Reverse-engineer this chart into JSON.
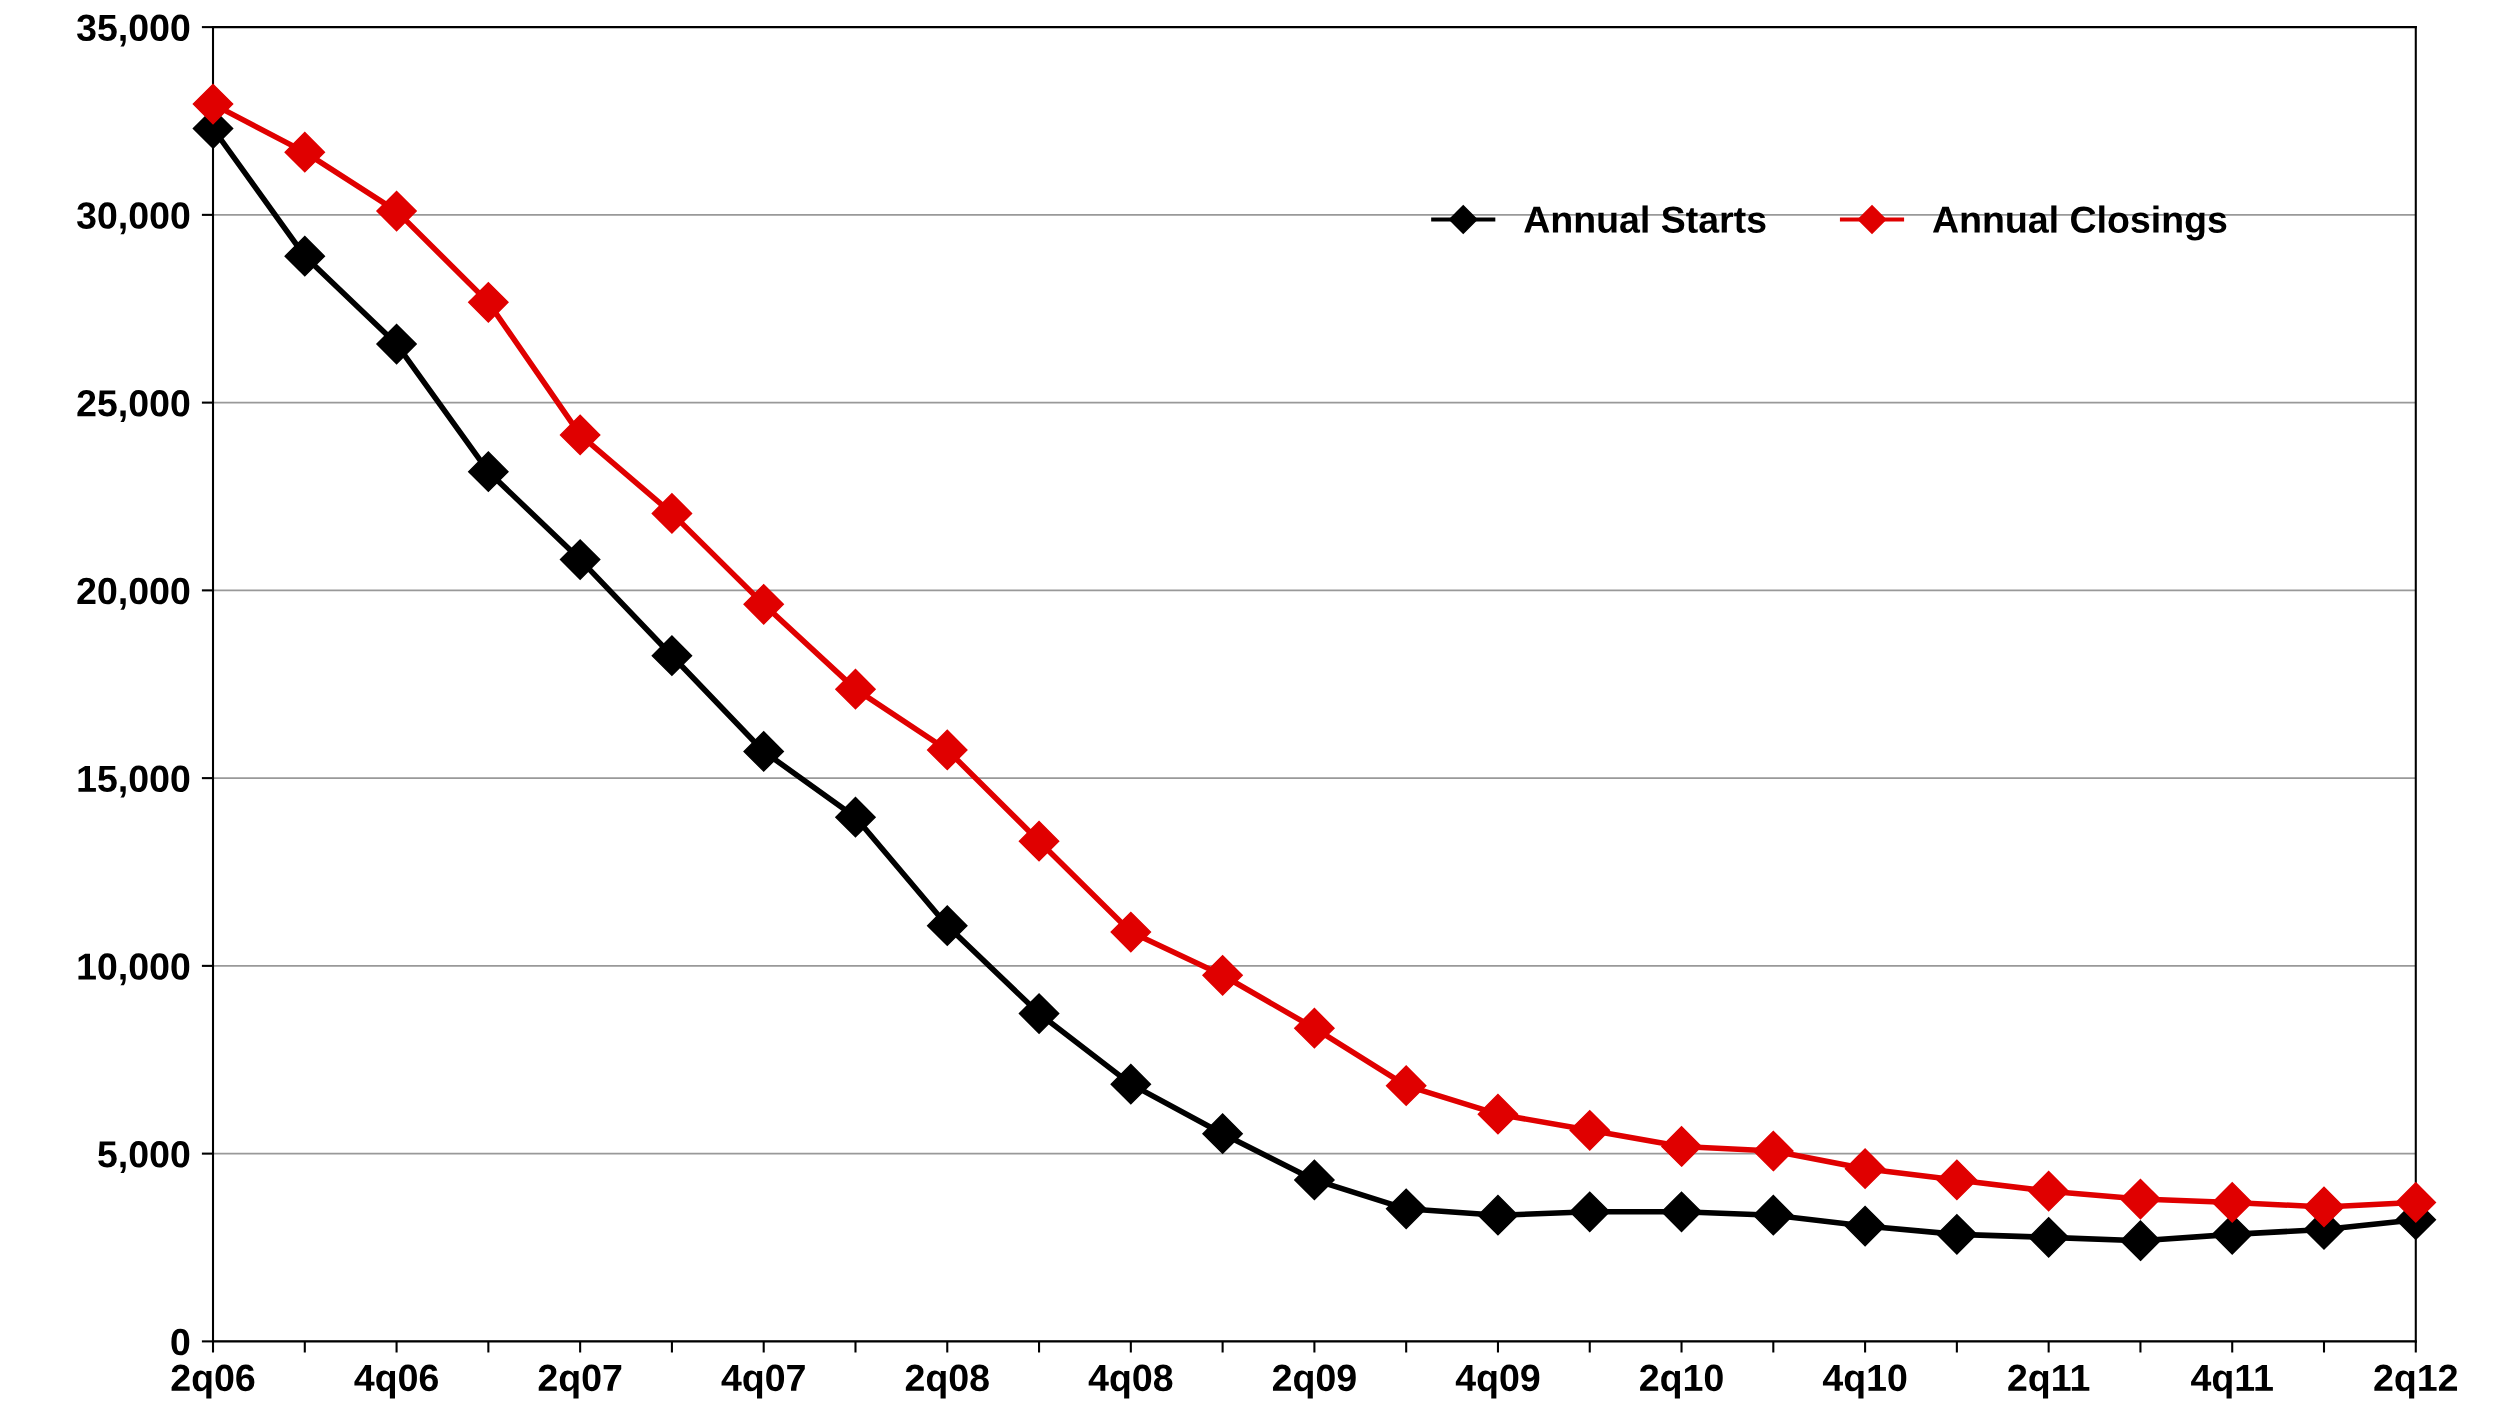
{
  "chart_data": {
    "type": "line",
    "categories": [
      "2q06",
      null,
      "4q06",
      null,
      "2q07",
      null,
      "4q07",
      null,
      "2q08",
      null,
      "4q08",
      null,
      "2q09",
      null,
      "4q09",
      null,
      "2q10",
      null,
      "4q10",
      null,
      "2q11",
      null,
      "4q11",
      null,
      "2q12"
    ],
    "series": [
      {
        "name": "Annual Starts",
        "color": "#000000",
        "values": [
          32300,
          28900,
          26560,
          23160,
          20820,
          18260,
          15710,
          13960,
          11070,
          8730,
          6850,
          5530,
          4300,
          3530,
          3360,
          3450,
          3450,
          3360,
          3070,
          2850,
          2770,
          2680,
          2850,
          2980,
          3240
        ]
      },
      {
        "name": "Annual Closings",
        "color": "#e00000",
        "values": [
          32950,
          31670,
          30100,
          27670,
          24140,
          22050,
          19630,
          17370,
          15750,
          13320,
          10900,
          9750,
          8340,
          6810,
          6050,
          5620,
          5190,
          5070,
          4600,
          4300,
          4000,
          3790,
          3700,
          3580,
          3700
        ]
      }
    ],
    "ylim": [
      0,
      35000
    ],
    "yticks": [
      {
        "value": 0,
        "label": "0"
      },
      {
        "value": 5000,
        "label": "5,000"
      },
      {
        "value": 10000,
        "label": "10,000"
      },
      {
        "value": 15000,
        "label": "15,000"
      },
      {
        "value": 20000,
        "label": "20,000"
      },
      {
        "value": 25000,
        "label": "25,000"
      },
      {
        "value": 30000,
        "label": "30,000"
      },
      {
        "value": 35000,
        "label": "35,000"
      }
    ],
    "grid": "y",
    "legend": "top right",
    "marker": "diamond",
    "line_style": "solid"
  }
}
